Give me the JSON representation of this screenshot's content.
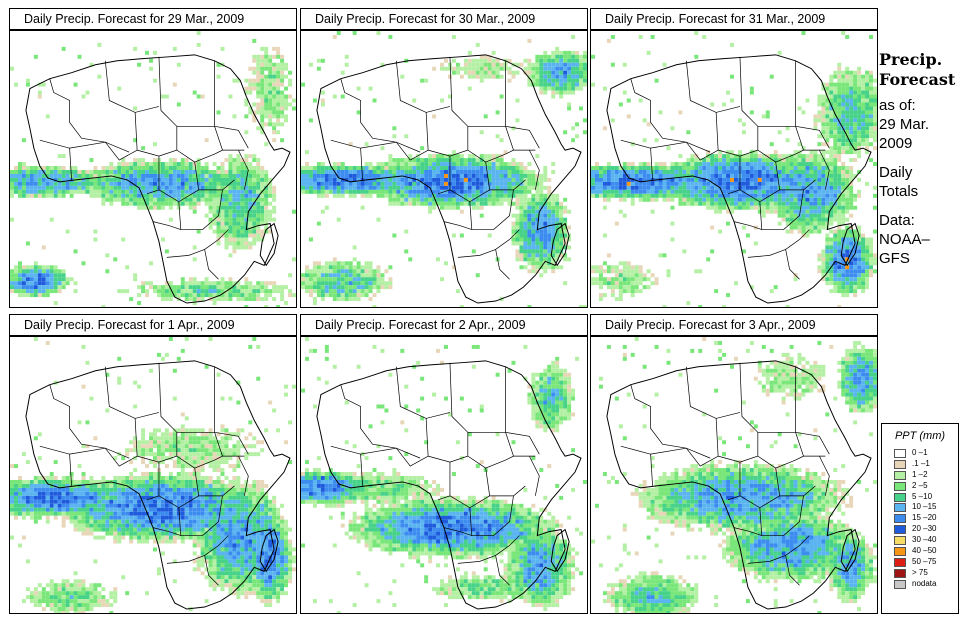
{
  "panels": [
    {
      "title": "Daily Precip. Forecast for  29 Mar., 2009",
      "date": "29 Mar."
    },
    {
      "title": "Daily Precip. Forecast for  30 Mar., 2009",
      "date": "30 Mar."
    },
    {
      "title": "Daily Precip. Forecast for  31 Mar., 2009",
      "date": "31 Mar."
    },
    {
      "title": "Daily Precip. Forecast for  1 Apr., 2009",
      "date": "1 Apr."
    },
    {
      "title": "Daily Precip. Forecast for  2 Apr., 2009",
      "date": "2 Apr."
    },
    {
      "title": "Daily Precip. Forecast for  3 Apr., 2009",
      "date": "3 Apr."
    }
  ],
  "side": {
    "title_line1": "Precip.",
    "title_line2": "Forecast",
    "asof_label": "as of:",
    "asof_date": "29 Mar.",
    "asof_year": "2009",
    "totals_line1": "Daily",
    "totals_line2": "Totals",
    "data_label": "Data:",
    "data_source_line1": "NOAA–",
    "data_source_line2": "GFS"
  },
  "legend": {
    "title": "PPT (mm)",
    "items": [
      {
        "label": "0 –1",
        "color": "#ffffff"
      },
      {
        "label": ".1 –1",
        "color": "#e8d6b8"
      },
      {
        "label": "1 –2",
        "color": "#b4f0a4"
      },
      {
        "label": "2 –5",
        "color": "#78e678"
      },
      {
        "label": "5 –10",
        "color": "#46d288"
      },
      {
        "label": "10 –15",
        "color": "#5ab4f0"
      },
      {
        "label": "15 –20",
        "color": "#3c8cf0"
      },
      {
        "label": "20 –30",
        "color": "#1e5adc"
      },
      {
        "label": "30 –40",
        "color": "#f5dc64"
      },
      {
        "label": "40 –50",
        "color": "#f59614"
      },
      {
        "label": "50 –75",
        "color": "#dc1e14"
      },
      {
        "label": "> 75",
        "color": "#a01414"
      },
      {
        "label": "nodata",
        "color": "#c8c8c8"
      }
    ]
  }
}
